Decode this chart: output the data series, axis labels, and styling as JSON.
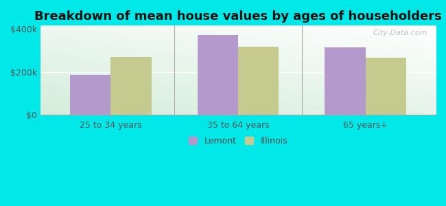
{
  "title": "Breakdown of mean house values by ages of householders",
  "categories": [
    "25 to 34 years",
    "35 to 64 years",
    "65 years+"
  ],
  "lemont_values": [
    185000,
    370000,
    315000
  ],
  "illinois_values": [
    268000,
    318000,
    265000
  ],
  "lemont_color": "#b399cc",
  "illinois_color": "#c5ca8e",
  "background_color": "#00e8e8",
  "ylabel_ticks": [
    0,
    200000,
    400000
  ],
  "ylabel_labels": [
    "$0",
    "$200k",
    "$400k"
  ],
  "ylim": [
    0,
    415000
  ],
  "legend_labels": [
    "Lemont",
    "Illinois"
  ],
  "bar_width": 0.32,
  "title_fontsize": 13,
  "tick_fontsize": 9,
  "legend_fontsize": 9,
  "watermark_text": "City-Data.com"
}
